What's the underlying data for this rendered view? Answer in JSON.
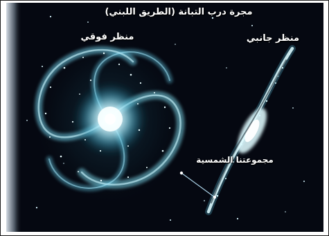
{
  "labels": {
    "title": "مجرة درب التبانة (الطريق اللبني)",
    "top_view": "منظر فوقي",
    "side_view": "منظر جانبي",
    "solar_system": "مجموعتنا الشمسية"
  },
  "colors": {
    "background": "#050811",
    "galaxy_core": "#ffffff",
    "galaxy_arms": "#69d0ea",
    "pointer_line": "#bde8ff",
    "frame": "#1a1a1a"
  }
}
